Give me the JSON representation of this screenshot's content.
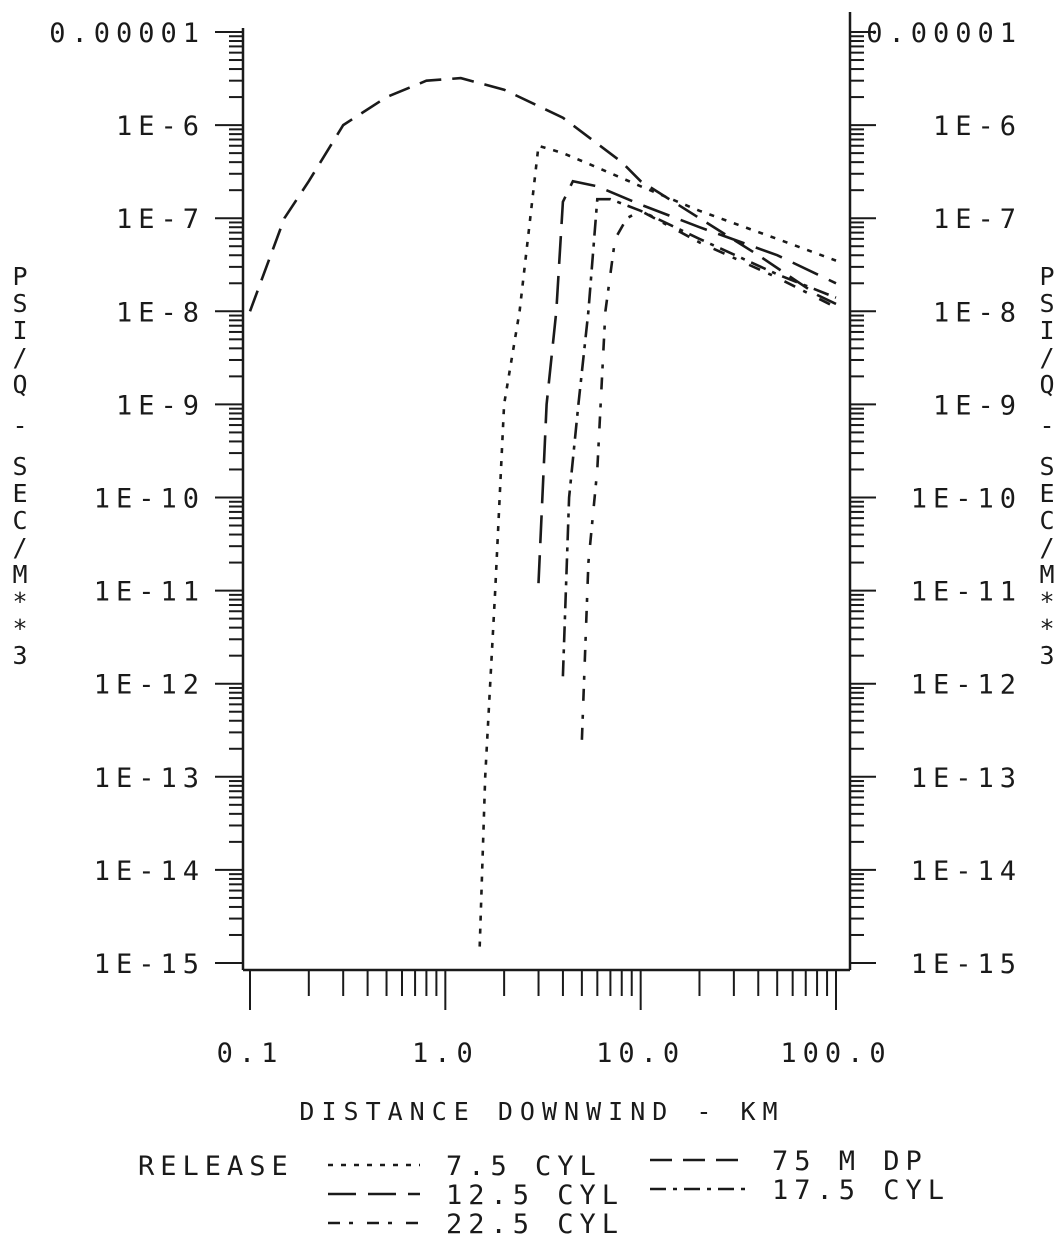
{
  "chart_data": {
    "type": "line",
    "x_scale": "log",
    "y_scale": "log",
    "xlim": [
      0.1,
      100.0
    ],
    "ylim": [
      1e-15,
      1e-05
    ],
    "xlabel": "DISTANCE DOWNWIND - KM",
    "ylabel": "PSI/Q - SEC/M**3",
    "x_tick_labels": [
      "0.1",
      "1.0",
      "10.0",
      "100.0"
    ],
    "x_tick_values": [
      0.1,
      1.0,
      10.0,
      100.0
    ],
    "y_tick_labels_left": [
      "0.00001",
      "1E-6",
      "1E-7",
      "1E-8",
      "1E-9",
      "1E-10",
      "1E-11",
      "1E-12",
      "1E-13",
      "1E-14",
      "1E-15"
    ],
    "y_tick_labels_right": [
      "0.00001",
      "1E-6",
      "1E-7",
      "1E-8",
      "1E-9",
      "1E-10",
      "1E-11",
      "1E-12",
      "1E-13",
      "1E-14",
      "1E-15"
    ],
    "y_tick_values": [
      1e-05,
      1e-06,
      1e-07,
      1e-08,
      1e-09,
      1e-10,
      1e-11,
      1e-12,
      1e-13,
      1e-14,
      1e-15
    ],
    "grid": false,
    "legend_title": "RELEASE",
    "legend_position": "bottom",
    "series": [
      {
        "name": "75 M DP",
        "dash": "22,11",
        "x": [
          0.1,
          0.15,
          0.2,
          0.3,
          0.5,
          0.8,
          1.2,
          2.0,
          4.0,
          8.0,
          10.0,
          20.0,
          40.0,
          80.0,
          100.0
        ],
        "y": [
          1e-08,
          1e-07,
          2.5e-07,
          1e-06,
          2e-06,
          3e-06,
          3.2e-06,
          2.4e-06,
          1.2e-06,
          4e-07,
          2.5e-07,
          1e-07,
          4e-08,
          1.5e-08,
          1.2e-08
        ]
      },
      {
        "name": "7.5 CYL",
        "dash": "5,8",
        "x": [
          1.5,
          1.6,
          1.8,
          2.0,
          2.4,
          3.0,
          4.0,
          6.0,
          10.0,
          20.0,
          50.0,
          100.0
        ],
        "y": [
          1.5e-15,
          1e-13,
          1e-11,
          1e-09,
          1e-08,
          6e-07,
          5e-07,
          3.5e-07,
          2.2e-07,
          1.2e-07,
          6e-08,
          3.5e-08
        ]
      },
      {
        "name": "12.5 CYL",
        "dash": "28,12",
        "x": [
          3.0,
          3.3,
          3.7,
          4.0,
          4.5,
          6.0,
          10.0,
          20.0,
          50.0,
          100.0
        ],
        "y": [
          1.2e-11,
          1e-09,
          1e-08,
          1.5e-07,
          2.5e-07,
          2.2e-07,
          1.4e-07,
          8e-08,
          4e-08,
          2e-08
        ]
      },
      {
        "name": "17.5 CYL",
        "dash": "16,7,4,7",
        "x": [
          4.0,
          4.3,
          4.8,
          5.4,
          6.0,
          7.0,
          10.0,
          20.0,
          50.0,
          100.0
        ],
        "y": [
          1.2e-12,
          1e-10,
          1e-09,
          1e-08,
          1.6e-07,
          1.6e-07,
          1.2e-07,
          6e-08,
          2.5e-08,
          1.4e-08
        ]
      },
      {
        "name": "22.5 CYL",
        "dash": "12,9,4,14",
        "x": [
          5.0,
          5.4,
          6.0,
          6.6,
          7.4,
          8.5,
          10.0,
          20.0,
          50.0,
          100.0
        ],
        "y": [
          2.5e-13,
          2e-11,
          2e-10,
          1e-08,
          6e-08,
          1e-07,
          1.2e-07,
          5.5e-08,
          2.3e-08,
          1.1e-08
        ]
      }
    ]
  }
}
